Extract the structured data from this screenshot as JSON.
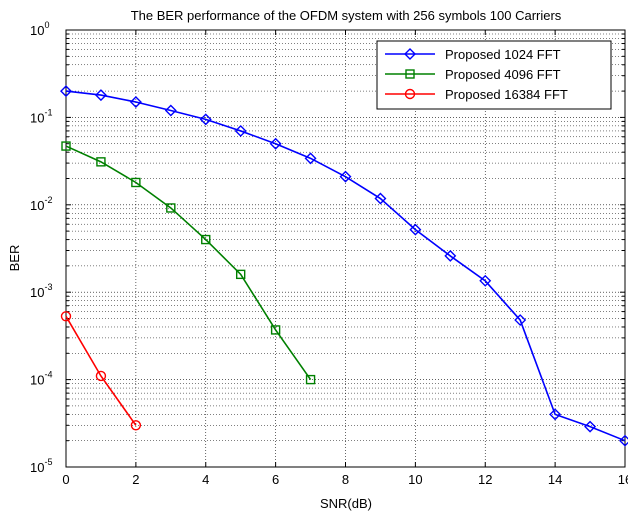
{
  "chart_data": {
    "type": "line",
    "title": "The BER  performance of the OFDM system with 256 symbols 100 Carriers",
    "xlabel": "SNR(dB)",
    "ylabel": "BER",
    "xlim": [
      0,
      16
    ],
    "ylim": [
      1e-05,
      1
    ],
    "yscale": "log",
    "grid": true,
    "legend_position": "top-right",
    "x_ticks": [
      "0",
      "2",
      "4",
      "6",
      "8",
      "10",
      "12",
      "14",
      "16"
    ],
    "y_ticks": [
      {
        "base": "10",
        "exp": "0"
      },
      {
        "base": "10",
        "exp": "-1"
      },
      {
        "base": "10",
        "exp": "-2"
      },
      {
        "base": "10",
        "exp": "-3"
      },
      {
        "base": "10",
        "exp": "-4"
      },
      {
        "base": "10",
        "exp": "-5"
      }
    ],
    "series": [
      {
        "name": "Proposed 1024 FFT",
        "color": "#0000ff",
        "marker": "diamond",
        "x": [
          0,
          1,
          2,
          3,
          4,
          5,
          6,
          7,
          8,
          9,
          10,
          11,
          12,
          13,
          14,
          15,
          16
        ],
        "values": [
          0.2,
          0.18,
          0.15,
          0.12,
          0.095,
          0.07,
          0.05,
          0.034,
          0.021,
          0.0118,
          0.0052,
          0.0026,
          0.00135,
          0.00048,
          4e-05,
          2.9e-05,
          2e-05
        ]
      },
      {
        "name": "Proposed 4096 FFT",
        "color": "#008000",
        "marker": "square",
        "x": [
          0,
          1,
          2,
          3,
          4,
          5,
          6,
          7
        ],
        "values": [
          0.047,
          0.031,
          0.018,
          0.0092,
          0.004,
          0.0016,
          0.00037,
          0.0001
        ]
      },
      {
        "name": "Proposed 16384 FFT",
        "color": "#ff0000",
        "marker": "circle",
        "x": [
          0,
          1,
          2
        ],
        "values": [
          0.00053,
          0.00011,
          3e-05
        ]
      }
    ]
  }
}
